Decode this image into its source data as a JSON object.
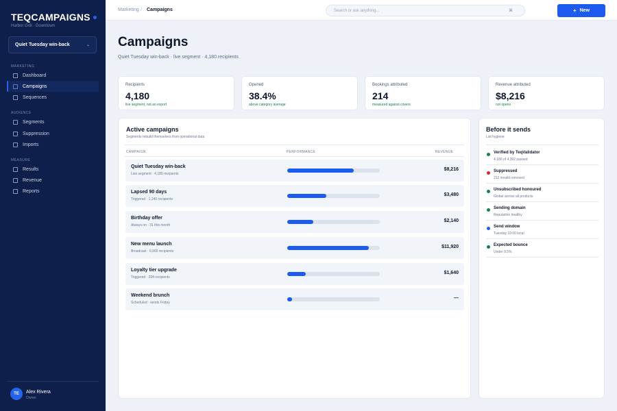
{
  "brand": {
    "name": "TEQCAMPAIGNS",
    "subtitle": "Harbor Grill · Downtown"
  },
  "campaign_select": {
    "value": "Quiet Tuesday win-back",
    "icon": "chevron-down-icon"
  },
  "sidebar": {
    "sections": [
      {
        "label": "MARKETING",
        "items": [
          {
            "label": "Dashboard"
          },
          {
            "label": "Campaigns",
            "active": true
          },
          {
            "label": "Sequences"
          }
        ]
      },
      {
        "label": "AUDIENCE",
        "items": [
          {
            "label": "Segments"
          },
          {
            "label": "Suppression"
          },
          {
            "label": "Imports"
          }
        ]
      },
      {
        "label": "MEASURE",
        "items": [
          {
            "label": "Results"
          },
          {
            "label": "Revenue"
          },
          {
            "label": "Reports"
          }
        ]
      }
    ]
  },
  "user": {
    "initials": "TE",
    "name": "Alex Rivera",
    "role": "Owner"
  },
  "topbar": {
    "breadcrumb": {
      "root": "Marketing",
      "separator": "/",
      "current": "Campaigns"
    },
    "search_placeholder": "Search or ask anything...",
    "search_shortcut": "⌘",
    "new_button": {
      "icon": "+",
      "label": "New"
    }
  },
  "page": {
    "title": "Campaigns",
    "subtitle": "Quiet Tuesday win-back · live segment · 4,180 recipients"
  },
  "stats": [
    {
      "label": "Recipients",
      "value": "4,180",
      "note": "live segment, not an export"
    },
    {
      "label": "Opened",
      "value": "38.4%",
      "note": "above category average"
    },
    {
      "label": "Bookings attributed",
      "value": "214",
      "note": "measured against covers"
    },
    {
      "label": "Revenue attributed",
      "value": "$8,216",
      "note": "not opens"
    }
  ],
  "active_campaigns": {
    "title": "Active campaigns",
    "subtitle": "Segments rebuild themselves from operational data",
    "columns": {
      "campaign": "CAMPAIGN",
      "performance": "PERFORMANCE",
      "revenue": "REVENUE"
    },
    "rows": [
      {
        "name": "Quiet Tuesday win-back",
        "meta": "Live segment · 4,180 recipients",
        "performance": 0.72,
        "revenue": "$8,216"
      },
      {
        "name": "Lapsed 90 days",
        "meta": "Triggered · 1,240 recipients",
        "performance": 0.42,
        "revenue": "$3,480"
      },
      {
        "name": "Birthday offer",
        "meta": "Always on · 31 this month",
        "performance": 0.28,
        "revenue": "$2,140"
      },
      {
        "name": "New menu launch",
        "meta": "Broadcast · 6,900 recipients",
        "performance": 0.88,
        "revenue": "$11,920"
      },
      {
        "name": "Loyalty tier upgrade",
        "meta": "Triggered · 204 recipients",
        "performance": 0.2,
        "revenue": "$1,640"
      },
      {
        "name": "Weekend brunch",
        "meta": "Scheduled · sends Friday",
        "performance": 0.05,
        "revenue": "—"
      }
    ]
  },
  "before_sends": {
    "title": "Before it sends",
    "subtitle": "List hygiene",
    "checks": [
      {
        "title": "Verified by TeqValidator",
        "sub": "4,180 of 4,392 passed",
        "color": "#14804a"
      },
      {
        "title": "Suppressed",
        "sub": "212 invalid removed",
        "color": "#d62b2b"
      },
      {
        "title": "Unsubscribed honoured",
        "sub": "Global across all products",
        "color": "#14804a"
      },
      {
        "title": "Sending domain",
        "sub": "Reputation healthy",
        "color": "#14804a"
      },
      {
        "title": "Send window",
        "sub": "Tuesday 10:00 local",
        "color": "#1d5bf0"
      },
      {
        "title": "Expected bounce",
        "sub": "Under 0.5%",
        "color": "#14804a"
      }
    ]
  },
  "colors": {
    "sidebar_bg": "#0d1f4a",
    "accent": "#1d5bf0",
    "positive": "#157a4a",
    "negative": "#d62b2b"
  }
}
